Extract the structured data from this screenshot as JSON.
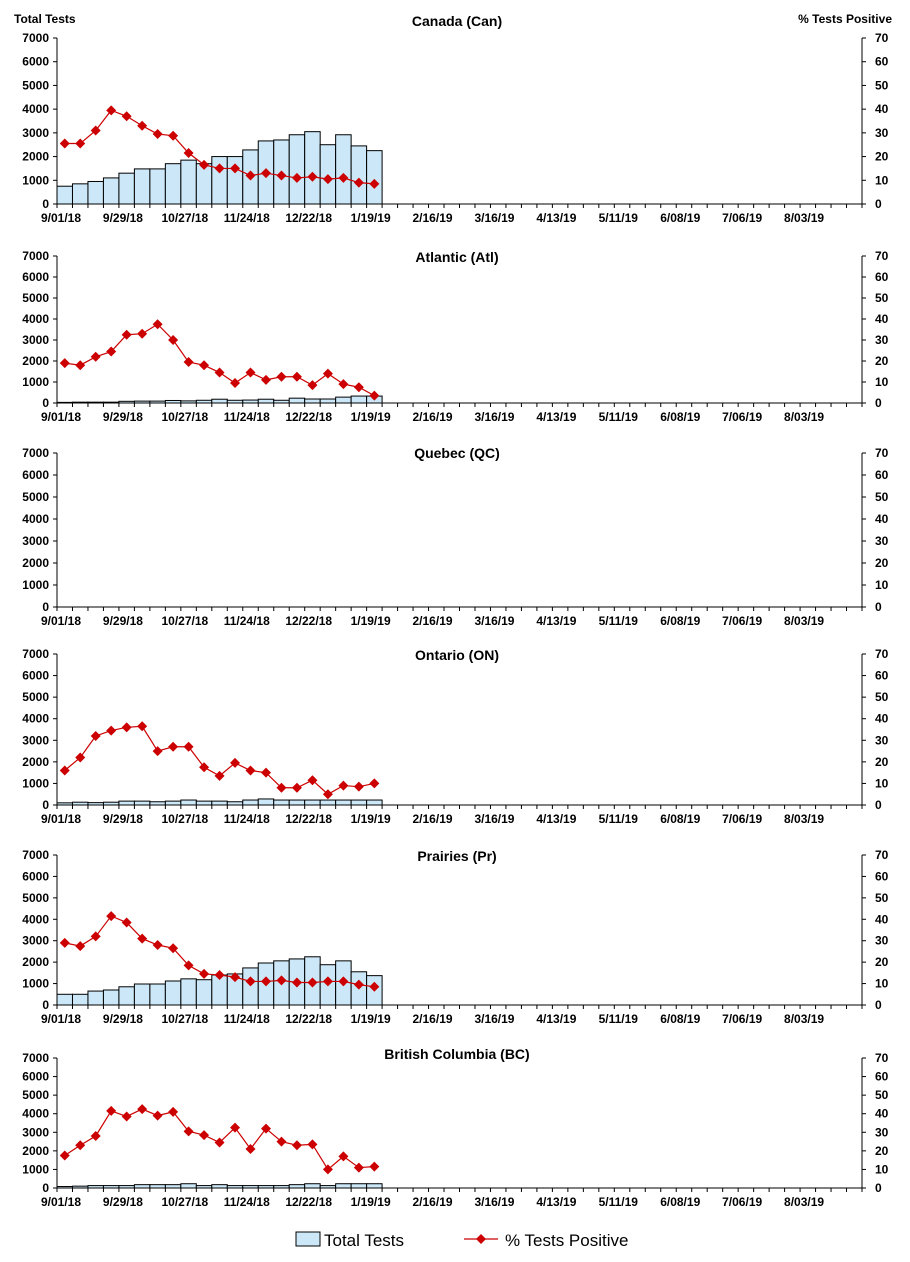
{
  "chart_data": {
    "type": "bar+line",
    "left_axis_label": "Total Tests",
    "right_axis_label": "% Tests Positive",
    "left_ylim": [
      0,
      7000
    ],
    "right_ylim": [
      0,
      70
    ],
    "left_ticks": [
      0,
      1000,
      2000,
      3000,
      4000,
      5000,
      6000,
      7000
    ],
    "right_ticks": [
      0,
      10,
      20,
      30,
      40,
      50,
      60,
      70
    ],
    "x_tick_labels": [
      "9/01/18",
      "9/29/18",
      "10/27/18",
      "11/24/18",
      "12/22/18",
      "1/19/19",
      "2/16/19",
      "3/16/19",
      "4/13/19",
      "5/11/19",
      "6/08/19",
      "7/06/19",
      "8/03/19"
    ],
    "grid": false,
    "legend": {
      "position": "bottom",
      "entries": [
        "Total Tests",
        "% Tests Positive"
      ]
    },
    "colors": {
      "bar_fill": "#cce8f8",
      "bar_stroke": "#000000",
      "line": "#cc0000"
    },
    "panels": [
      {
        "title": "Canada (Can)",
        "total_tests": [
          750,
          850,
          950,
          1100,
          1300,
          1480,
          1480,
          1700,
          1850,
          1700,
          2000,
          2000,
          2280,
          2660,
          2700,
          2920,
          3050,
          2500,
          2920,
          2450,
          2250
        ],
        "pct_positive": [
          25.5,
          25.5,
          31,
          39.5,
          37,
          33,
          29.5,
          28.8,
          21.5,
          16.5,
          15,
          15,
          12,
          13,
          12,
          11,
          11.5,
          10.5,
          11,
          9,
          8.5
        ]
      },
      {
        "title": "Atlantic (Atl)",
        "total_tests": [
          30,
          40,
          40,
          40,
          80,
          90,
          90,
          120,
          100,
          130,
          180,
          130,
          140,
          180,
          130,
          230,
          190,
          190,
          280,
          330,
          330
        ],
        "pct_positive": [
          19,
          18,
          22,
          24.5,
          32.5,
          33,
          37.5,
          30,
          19.5,
          18,
          14.5,
          9.5,
          14.5,
          11,
          12.5,
          12.5,
          8.5,
          14,
          9,
          7.5,
          3.5
        ]
      },
      {
        "title": "Quebec (QC)",
        "total_tests": [],
        "pct_positive": []
      },
      {
        "title": "Ontario (ON)",
        "total_tests": [
          100,
          130,
          110,
          130,
          180,
          180,
          150,
          180,
          230,
          180,
          180,
          150,
          230,
          280,
          230,
          230,
          230,
          230,
          230,
          230,
          230
        ],
        "pct_positive": [
          16,
          22,
          32,
          34.5,
          36,
          36.5,
          25,
          27,
          27,
          17.5,
          13.5,
          19.5,
          16,
          15,
          8,
          8,
          11.5,
          5,
          9,
          8.5,
          10
        ]
      },
      {
        "title": "Prairies (Pr)",
        "total_tests": [
          500,
          500,
          650,
          700,
          850,
          980,
          980,
          1120,
          1220,
          1180,
          1400,
          1450,
          1730,
          1960,
          2060,
          2150,
          2250,
          1880,
          2060,
          1550,
          1370
        ],
        "pct_positive": [
          29,
          27.5,
          32,
          41.5,
          38.5,
          31,
          28,
          26.5,
          18.5,
          14.5,
          14,
          13,
          11,
          11,
          11.5,
          10.5,
          10.5,
          11,
          11,
          9.5,
          8.5
        ]
      },
      {
        "title": "British Columbia (BC)",
        "total_tests": [
          80,
          100,
          130,
          130,
          130,
          180,
          180,
          180,
          230,
          130,
          180,
          130,
          130,
          130,
          130,
          180,
          230,
          130,
          230,
          230,
          230
        ],
        "pct_positive": [
          17.5,
          23,
          28,
          41.5,
          38.5,
          42.5,
          39,
          41,
          30.5,
          28.5,
          24.5,
          32.5,
          21,
          32,
          25,
          23,
          23.5,
          10,
          17,
          11,
          11.5
        ]
      }
    ]
  }
}
